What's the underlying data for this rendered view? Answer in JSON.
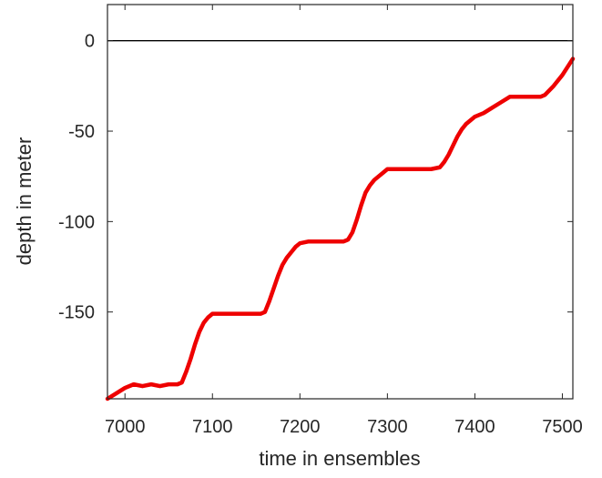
{
  "chart_data": {
    "type": "line",
    "title": "",
    "xlabel": "time in ensembles",
    "ylabel": "depth in meter",
    "xlim": [
      6980,
      7512
    ],
    "ylim": [
      -198,
      20
    ],
    "xticks": [
      7000,
      7100,
      7200,
      7300,
      7400,
      7500
    ],
    "xtick_labels": [
      "7000",
      "7100",
      "7200",
      "7300",
      "7400",
      "7500"
    ],
    "yticks": [
      0,
      -50,
      -100,
      -150
    ],
    "ytick_labels": [
      "0",
      "-50",
      "-100",
      "-150"
    ],
    "grid": false,
    "legend": "none",
    "reference_line": {
      "y": 0,
      "color": "#000000"
    },
    "series": [
      {
        "color": "#ee0000",
        "x": [
          6980,
          6990,
          7000,
          7010,
          7020,
          7030,
          7040,
          7050,
          7060,
          7065,
          7070,
          7075,
          7080,
          7085,
          7090,
          7095,
          7100,
          7110,
          7120,
          7130,
          7140,
          7150,
          7155,
          7160,
          7165,
          7170,
          7175,
          7180,
          7185,
          7190,
          7195,
          7200,
          7210,
          7220,
          7230,
          7240,
          7250,
          7255,
          7260,
          7265,
          7270,
          7275,
          7280,
          7285,
          7290,
          7295,
          7300,
          7310,
          7320,
          7330,
          7340,
          7350,
          7360,
          7365,
          7370,
          7375,
          7380,
          7385,
          7390,
          7395,
          7400,
          7410,
          7420,
          7430,
          7440,
          7450,
          7460,
          7470,
          7475,
          7480,
          7490,
          7500,
          7512
        ],
        "y": [
          -198,
          -195,
          -192,
          -190,
          -191,
          -190,
          -191,
          -190,
          -190,
          -189,
          -183,
          -176,
          -168,
          -161,
          -156,
          -153,
          -151,
          -151,
          -151,
          -151,
          -151,
          -151,
          -151,
          -150,
          -144,
          -137,
          -130,
          -124,
          -120,
          -117,
          -114,
          -112,
          -111,
          -111,
          -111,
          -111,
          -111,
          -110,
          -106,
          -99,
          -91,
          -84,
          -80,
          -77,
          -75,
          -73,
          -71,
          -71,
          -71,
          -71,
          -71,
          -71,
          -70,
          -67,
          -63,
          -58,
          -53,
          -49,
          -46,
          -44,
          -42,
          -40,
          -37,
          -34,
          -31,
          -31,
          -31,
          -31,
          -31,
          -30,
          -25,
          -19,
          -10
        ]
      }
    ]
  }
}
